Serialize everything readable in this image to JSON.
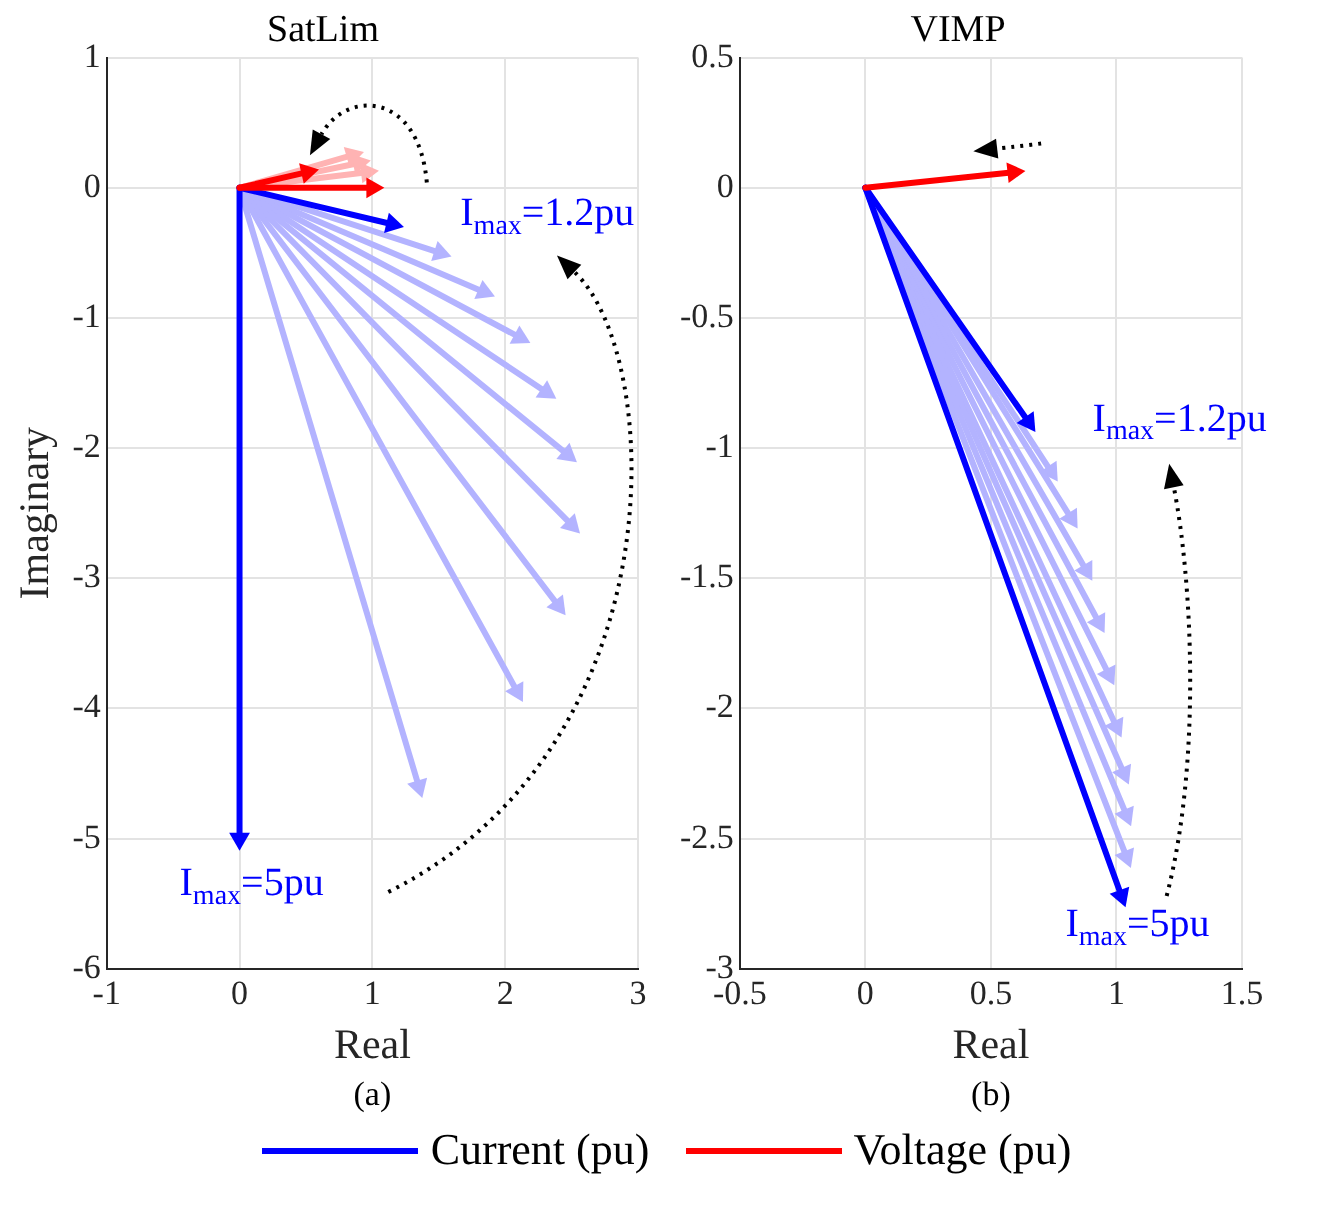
{
  "chart_data": [
    {
      "type": "line",
      "title": "SatLim",
      "xlabel": "Real",
      "ylabel": "Imaginary",
      "xlim": [
        -1,
        3
      ],
      "xticks": [
        -1,
        0,
        1,
        2,
        3
      ],
      "ylim": [
        -6,
        1
      ],
      "yticks": [
        -6,
        -5,
        -4,
        -3,
        -2,
        -1,
        0,
        1
      ],
      "grid": true,
      "legend": "bottom",
      "marker": "triangle",
      "line_style": "solid",
      "series": [
        {
          "color": "#b3b3ff",
          "x": [
            0,
            1.51
          ],
          "values": [
            0,
            -0.5
          ]
        },
        {
          "color": "#b3b3ff",
          "x": [
            0,
            1.84
          ],
          "values": [
            0,
            -0.8
          ]
        },
        {
          "color": "#b3b3ff",
          "x": [
            0,
            2.11
          ],
          "values": [
            0,
            -1.15
          ]
        },
        {
          "color": "#b3b3ff",
          "x": [
            0,
            2.31
          ],
          "values": [
            0,
            -1.57
          ]
        },
        {
          "color": "#b3b3ff",
          "x": [
            0,
            2.47
          ],
          "values": [
            0,
            -2.05
          ]
        },
        {
          "color": "#b3b3ff",
          "x": [
            0,
            2.5
          ],
          "values": [
            0,
            -2.59
          ]
        },
        {
          "color": "#b3b3ff",
          "x": [
            0,
            2.4
          ],
          "values": [
            0,
            -3.21
          ]
        },
        {
          "color": "#b3b3ff",
          "x": [
            0,
            2.09
          ],
          "values": [
            0,
            -3.87
          ]
        },
        {
          "color": "#b3b3ff",
          "x": [
            0,
            1.35
          ],
          "values": [
            0,
            -4.6
          ]
        },
        {
          "color": "#ffb3b3",
          "x": [
            0,
            0.96
          ],
          "values": [
            0,
            0.12
          ]
        },
        {
          "color": "#ffb3b3",
          "x": [
            0,
            0.9
          ],
          "values": [
            0,
            0.19
          ]
        },
        {
          "color": "#ffb3b3",
          "x": [
            0,
            0.85
          ],
          "values": [
            0,
            0.25
          ]
        },
        {
          "name": "Current (pu)",
          "color": "#0000ff",
          "x": [
            0,
            1.15
          ],
          "values": [
            0,
            -0.28
          ]
        },
        {
          "color": "#0000ff",
          "x": [
            0,
            0
          ],
          "values": [
            0,
            -5.0
          ]
        },
        {
          "name": "Voltage (pu)",
          "color": "#ff0000",
          "x": [
            0,
            1.0
          ],
          "values": [
            0,
            0
          ]
        },
        {
          "color": "#ff0000",
          "x": [
            0,
            0.51
          ],
          "values": [
            0,
            0.12
          ]
        }
      ],
      "annotations": [
        {
          "text": "I$_{max}$=1.2pu",
          "x": 1.15,
          "y": -0.28
        },
        {
          "text": "I$_{max}$=5pu",
          "x": 0,
          "y": -5.0
        },
        "(a)"
      ]
    },
    {
      "type": "line",
      "title": "VIMP",
      "xlabel": "Real",
      "xlim": [
        -0.5,
        1.5
      ],
      "xticks": [
        -0.5,
        0,
        0.5,
        1,
        1.5
      ],
      "ylim": [
        -3,
        0.5
      ],
      "yticks": [
        -3,
        -2.5,
        -2,
        -1.5,
        -1,
        -0.5,
        0,
        0.5
      ],
      "grid": true,
      "marker": "triangle",
      "line_style": "solid",
      "series": [
        {
          "color": "#b3b3ff",
          "x": [
            0,
            0.74
          ],
          "values": [
            0,
            -1.09
          ]
        },
        {
          "color": "#b3b3ff",
          "x": [
            0,
            0.82
          ],
          "values": [
            0,
            -1.27
          ]
        },
        {
          "color": "#b3b3ff",
          "x": [
            0,
            0.88
          ],
          "values": [
            0,
            -1.47
          ]
        },
        {
          "color": "#b3b3ff",
          "x": [
            0,
            0.93
          ],
          "values": [
            0,
            -1.67
          ]
        },
        {
          "color": "#b3b3ff",
          "x": [
            0,
            0.97
          ],
          "values": [
            0,
            -1.87
          ]
        },
        {
          "color": "#b3b3ff",
          "x": [
            0,
            1.0
          ],
          "values": [
            0,
            -2.07
          ]
        },
        {
          "color": "#b3b3ff",
          "x": [
            0,
            1.03
          ],
          "values": [
            0,
            -2.25
          ]
        },
        {
          "color": "#b3b3ff",
          "x": [
            0,
            1.04
          ],
          "values": [
            0,
            -2.41
          ]
        },
        {
          "color": "#b3b3ff",
          "x": [
            0,
            1.04
          ],
          "values": [
            0,
            -2.57
          ]
        },
        {
          "color": "#0000ff",
          "x": [
            0,
            0.65
          ],
          "values": [
            0,
            -0.9
          ]
        },
        {
          "color": "#0000ff",
          "x": [
            0,
            1.02
          ],
          "values": [
            0,
            -2.72
          ]
        },
        {
          "color": "#ff0000",
          "x": [
            0,
            0.59
          ],
          "values": [
            0,
            0.06
          ]
        }
      ],
      "annotations": [
        {
          "text": "I$_{max}$=1.2pu",
          "x": 0.65,
          "y": -0.9
        },
        {
          "text": "I$_{max}$=5pu",
          "x": 1.02,
          "y": -2.72
        },
        "(b)"
      ]
    }
  ]
}
